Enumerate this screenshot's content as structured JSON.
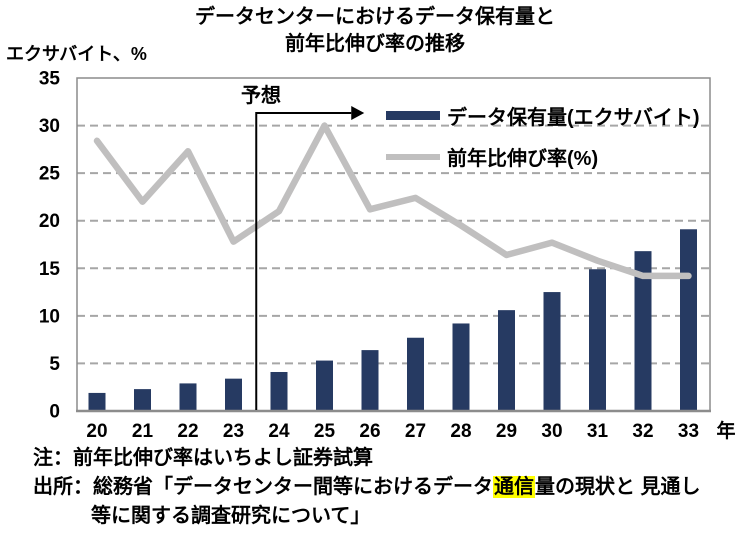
{
  "title": {
    "line1": "データセンターにおけるデータ保有量と",
    "line2": "前年比伸び率の推移"
  },
  "y_axis_unit": "エクサバイト、%",
  "chart_data": {
    "type": "bar",
    "categories": [
      "20",
      "21",
      "22",
      "23",
      "24",
      "25",
      "26",
      "27",
      "28",
      "29",
      "30",
      "31",
      "32",
      "33"
    ],
    "x_axis_suffix": "年",
    "series": [
      {
        "name": "データ保有量(エクサバイト)",
        "type": "bar",
        "color": "#263A62",
        "values": [
          1.9,
          2.3,
          2.9,
          3.4,
          4.1,
          5.3,
          6.4,
          7.7,
          9.2,
          10.6,
          12.5,
          14.9,
          16.8,
          19.1
        ]
      },
      {
        "name": "前年比伸び率(%)",
        "type": "line",
        "color": "#C0BFBF",
        "values": [
          28.4,
          22.0,
          27.3,
          17.8,
          21.0,
          30.0,
          21.2,
          22.4,
          19.5,
          16.4,
          17.7,
          15.8,
          14.2,
          14.2
        ]
      }
    ],
    "ylim": [
      0,
      35
    ],
    "yticks": [
      0,
      5,
      10,
      15,
      20,
      25,
      30,
      35
    ],
    "grid": "dashed-horizontal",
    "grid_color": "#A6A6A6",
    "border_color": "#8C8C8C",
    "legend_position": "top-right-inside",
    "forecast": {
      "label": "予想",
      "boundary_after_category": "23"
    }
  },
  "notes": {
    "note1": "注：前年比伸び率はいちよし証券試算",
    "source_prefix": "出所：総務省「データセンター間等におけるデータ",
    "source_highlight": "通信",
    "source_suffix": "量の現状と 見通し",
    "source_line2": "等に関する調査研究について」",
    "highlight_color": "#FFFF00"
  }
}
